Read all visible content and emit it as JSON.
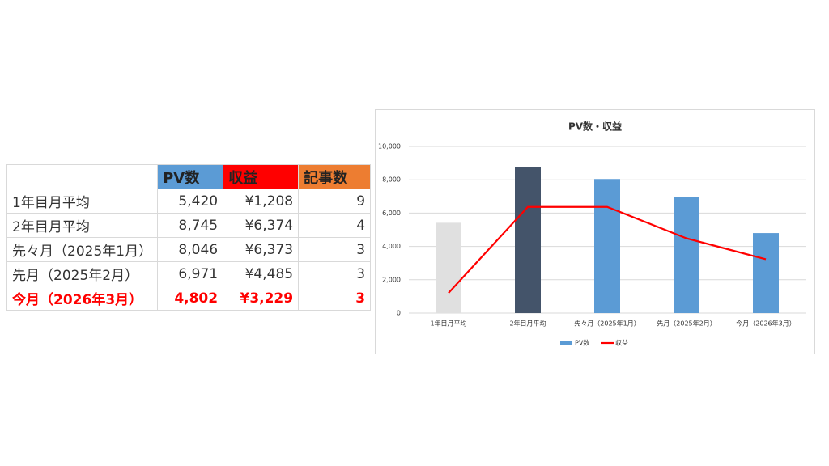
{
  "table": {
    "header": [
      "PV数",
      "収益",
      "記事数"
    ],
    "rows": [
      [
        "1年目月平均",
        "5,420",
        "¥1,208",
        "9"
      ],
      [
        "2年目月平均",
        "8,745",
        "¥6,374",
        "4"
      ],
      [
        "先々月（2025年1月）",
        "8,046",
        "¥6,373",
        "3"
      ],
      [
        "先月（2025年2月）",
        "6,971",
        "¥4,485",
        "3"
      ],
      [
        "今月（2026年3月）",
        "4,802",
        "¥3,229",
        "3"
      ]
    ],
    "header_colors": [
      "#5b9bd5",
      "#ff0000",
      "#ed7d31"
    ]
  },
  "chart_data": {
    "type": "bar_line",
    "title": "PV数・収益",
    "categories": [
      "1年目月平均",
      "2年目月平均",
      "先々月（2025年1月）",
      "先月（2025年2月）",
      "今月（2026年3月）"
    ],
    "series": [
      {
        "name": "PV数",
        "type": "bar",
        "color": "#5b9bd5",
        "colors": [
          "#e0e0e0",
          "#44546a",
          "#5b9bd5",
          "#5b9bd5",
          "#5b9bd5"
        ],
        "values": [
          5420,
          8745,
          8046,
          6971,
          4802
        ]
      },
      {
        "name": "収益",
        "type": "line",
        "color": "#ff0000",
        "values": [
          1208,
          6374,
          6373,
          4485,
          3229
        ]
      }
    ],
    "ylim": [
      0,
      10000
    ],
    "yticks": [
      0,
      {
        "value": 2000,
        "label": "2,000"
      },
      {
        "value": 4000,
        "label": "4,000"
      },
      {
        "value": 6000,
        "label": "6,000"
      },
      {
        "value": 8000,
        "label": "8,000"
      },
      {
        "value": 10000,
        "label": "10,000"
      }
    ],
    "grid": true,
    "legend": "bottom"
  }
}
